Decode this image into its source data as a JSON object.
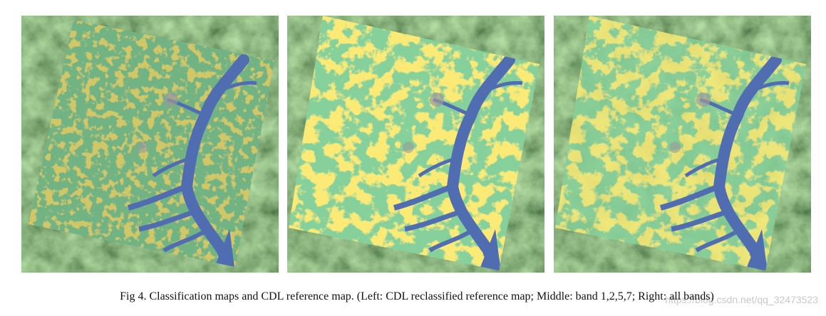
{
  "figure": {
    "caption": "Fig 4. Classification maps and CDL reference map. (Left: CDL reclassified reference map; Middle: band 1,2,5,7; Right: all bands)",
    "watermark": "https://blog.csdn.net/qq_32473523"
  }
}
